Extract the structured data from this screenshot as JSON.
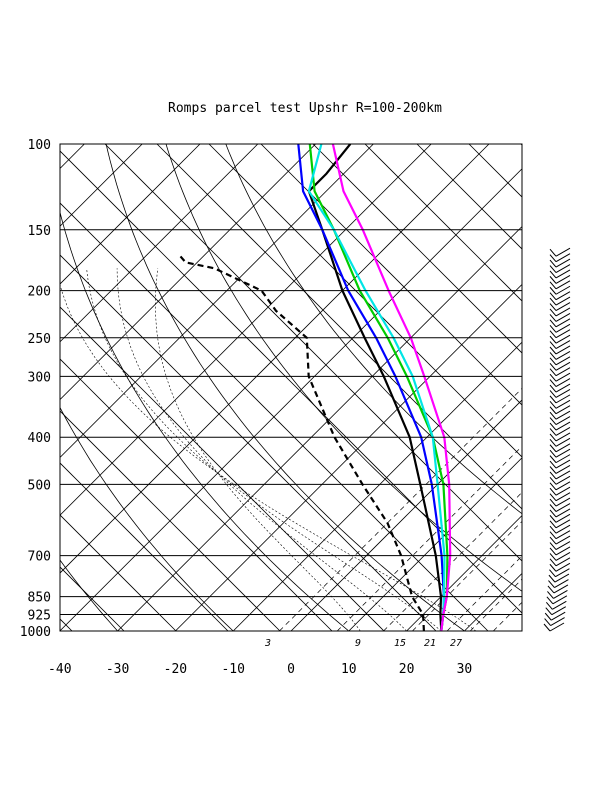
{
  "chart_data": {
    "type": "skew-t log-p diagram",
    "title": "Romps parcel test Upshr R=100-200km",
    "pressure_ticks": [
      100,
      150,
      200,
      250,
      300,
      400,
      500,
      700,
      850,
      925,
      1000
    ],
    "temperature_ticks": [
      -40,
      -30,
      -20,
      -10,
      0,
      10,
      20,
      30
    ],
    "mixing_ratio_labels": [
      "3",
      "9",
      "15",
      "21",
      "27"
    ],
    "p_range": [
      1000,
      100
    ],
    "t_range_at_1000": [
      -40,
      40
    ],
    "grid": true,
    "series": [
      {
        "color": "#000000",
        "style": "solid",
        "points": [
          [
            1000,
            26
          ],
          [
            925,
            23
          ],
          [
            850,
            20
          ],
          [
            700,
            12
          ],
          [
            500,
            -3
          ],
          [
            400,
            -13
          ],
          [
            300,
            -28
          ],
          [
            250,
            -38
          ],
          [
            200,
            -50
          ],
          [
            150,
            -64
          ],
          [
            125,
            -73
          ],
          [
            115,
            -73
          ],
          [
            100,
            -74
          ]
        ]
      },
      {
        "color": "#0000ff",
        "style": "solid",
        "points": [
          [
            1000,
            26
          ],
          [
            925,
            23.5
          ],
          [
            850,
            20.5
          ],
          [
            700,
            13
          ],
          [
            500,
            -1
          ],
          [
            400,
            -11
          ],
          [
            300,
            -26
          ],
          [
            250,
            -36
          ],
          [
            200,
            -49
          ],
          [
            150,
            -64
          ],
          [
            125,
            -74
          ],
          [
            100,
            -83
          ]
        ]
      },
      {
        "color": "#00cc00",
        "style": "solid",
        "points": [
          [
            1000,
            26
          ],
          [
            925,
            23.5
          ],
          [
            850,
            21
          ],
          [
            700,
            14
          ],
          [
            500,
            1
          ],
          [
            400,
            -9
          ],
          [
            300,
            -24
          ],
          [
            250,
            -34
          ],
          [
            200,
            -47
          ],
          [
            150,
            -62
          ],
          [
            125,
            -72
          ],
          [
            100,
            -81
          ]
        ]
      },
      {
        "color": "#00e5e5",
        "style": "solid",
        "points": [
          [
            1000,
            26
          ],
          [
            925,
            23.5
          ],
          [
            850,
            20.5
          ],
          [
            700,
            13.5
          ],
          [
            500,
            0
          ],
          [
            400,
            -9
          ],
          [
            300,
            -23
          ],
          [
            250,
            -33
          ],
          [
            200,
            -46
          ],
          [
            150,
            -62
          ],
          [
            125,
            -73
          ],
          [
            100,
            -79
          ]
        ]
      },
      {
        "color": "#ff00ff",
        "style": "solid",
        "points": [
          [
            1000,
            26
          ],
          [
            925,
            23.5
          ],
          [
            850,
            21
          ],
          [
            700,
            14.5
          ],
          [
            500,
            2
          ],
          [
            400,
            -7
          ],
          [
            300,
            -21
          ],
          [
            250,
            -30
          ],
          [
            200,
            -42
          ],
          [
            150,
            -57
          ],
          [
            125,
            -67
          ],
          [
            100,
            -77
          ]
        ]
      },
      {
        "color": "#000000",
        "style": "dashed",
        "points": [
          [
            1000,
            23
          ],
          [
            925,
            20
          ],
          [
            850,
            15
          ],
          [
            700,
            6
          ],
          [
            600,
            -2
          ],
          [
            500,
            -13
          ],
          [
            400,
            -26
          ],
          [
            300,
            -41
          ],
          [
            250,
            -48
          ],
          [
            220,
            -58
          ],
          [
            200,
            -64
          ],
          [
            180,
            -76
          ],
          [
            175,
            -82
          ],
          [
            170,
            -84
          ]
        ]
      }
    ],
    "wind_barbs": {
      "p_range": [
        1000,
        170
      ]
    }
  }
}
